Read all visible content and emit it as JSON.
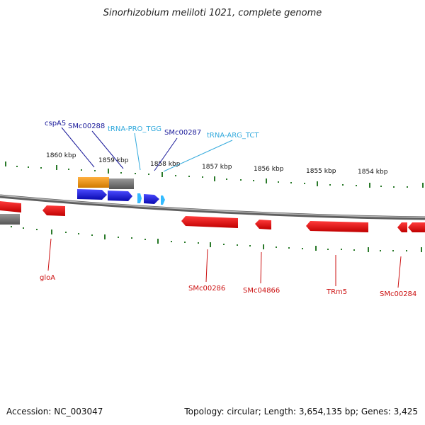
{
  "title": "Sinorhizobium meliloti 1021, complete genome",
  "accession_text": "Accession: NC_003047",
  "topology_text": "Topology: circular; Length: 3,654,135 bp; Genes: 3,425",
  "colors": {
    "backbone": "#8c8c8c",
    "tick": "#2a7a2a",
    "cds_forward": "#1a1ae6",
    "trna_forward": "#33bbff",
    "cds_reverse": "#ee1111",
    "label_forward_gene": "#1a1a9a",
    "label_forward_trna": "#33aadd",
    "label_reverse": "#cc1111",
    "expression_orange": "#f39c1a",
    "expression_grey": "#7a7a7a"
  },
  "scale": {
    "unit": "kbp",
    "labels": [
      "1860 kbp",
      "1859 kbp",
      "1858 kbp",
      "1857 kbp",
      "1856 kbp",
      "1855 kbp",
      "1854 kbp"
    ]
  },
  "forward_genes": [
    {
      "name": "cspA5",
      "type": "CDS"
    },
    {
      "name": "SMc00288",
      "type": "CDS"
    },
    {
      "name": "tRNA-PRO_TGG",
      "type": "tRNA"
    },
    {
      "name": "SMc00287",
      "type": "CDS"
    },
    {
      "name": "tRNA-ARG_TCT",
      "type": "tRNA"
    }
  ],
  "reverse_genes": [
    {
      "name": "gloA"
    },
    {
      "name": "SMc00286"
    },
    {
      "name": "SMc04866"
    },
    {
      "name": "TRm5"
    },
    {
      "name": "SMc00284"
    }
  ]
}
